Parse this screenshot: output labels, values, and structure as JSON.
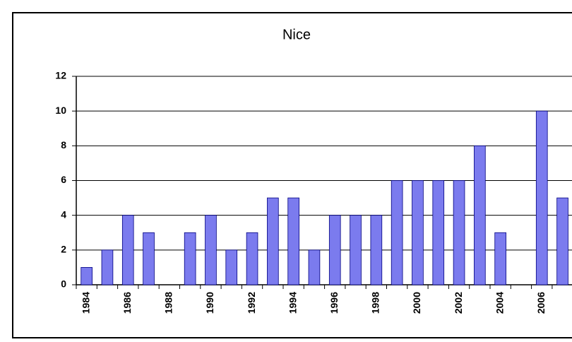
{
  "chart_data": {
    "type": "bar",
    "title": "Nice",
    "categories": [
      "1984",
      null,
      "1986",
      null,
      "1988",
      null,
      "1990",
      null,
      "1992",
      null,
      "1994",
      null,
      "1996",
      null,
      "1998",
      null,
      "2000",
      null,
      "2002",
      null,
      "2004",
      null,
      "2006",
      null
    ],
    "values": [
      1,
      2,
      4,
      3,
      0,
      3,
      4,
      2,
      3,
      5,
      5,
      2,
      4,
      4,
      4,
      6,
      6,
      6,
      6,
      8,
      3,
      0,
      10,
      5
    ],
    "color": "#7b7bee",
    "ylim": [
      0,
      12
    ],
    "yticks": [
      0,
      2,
      4,
      6,
      8,
      10,
      12
    ],
    "grid": true
  }
}
